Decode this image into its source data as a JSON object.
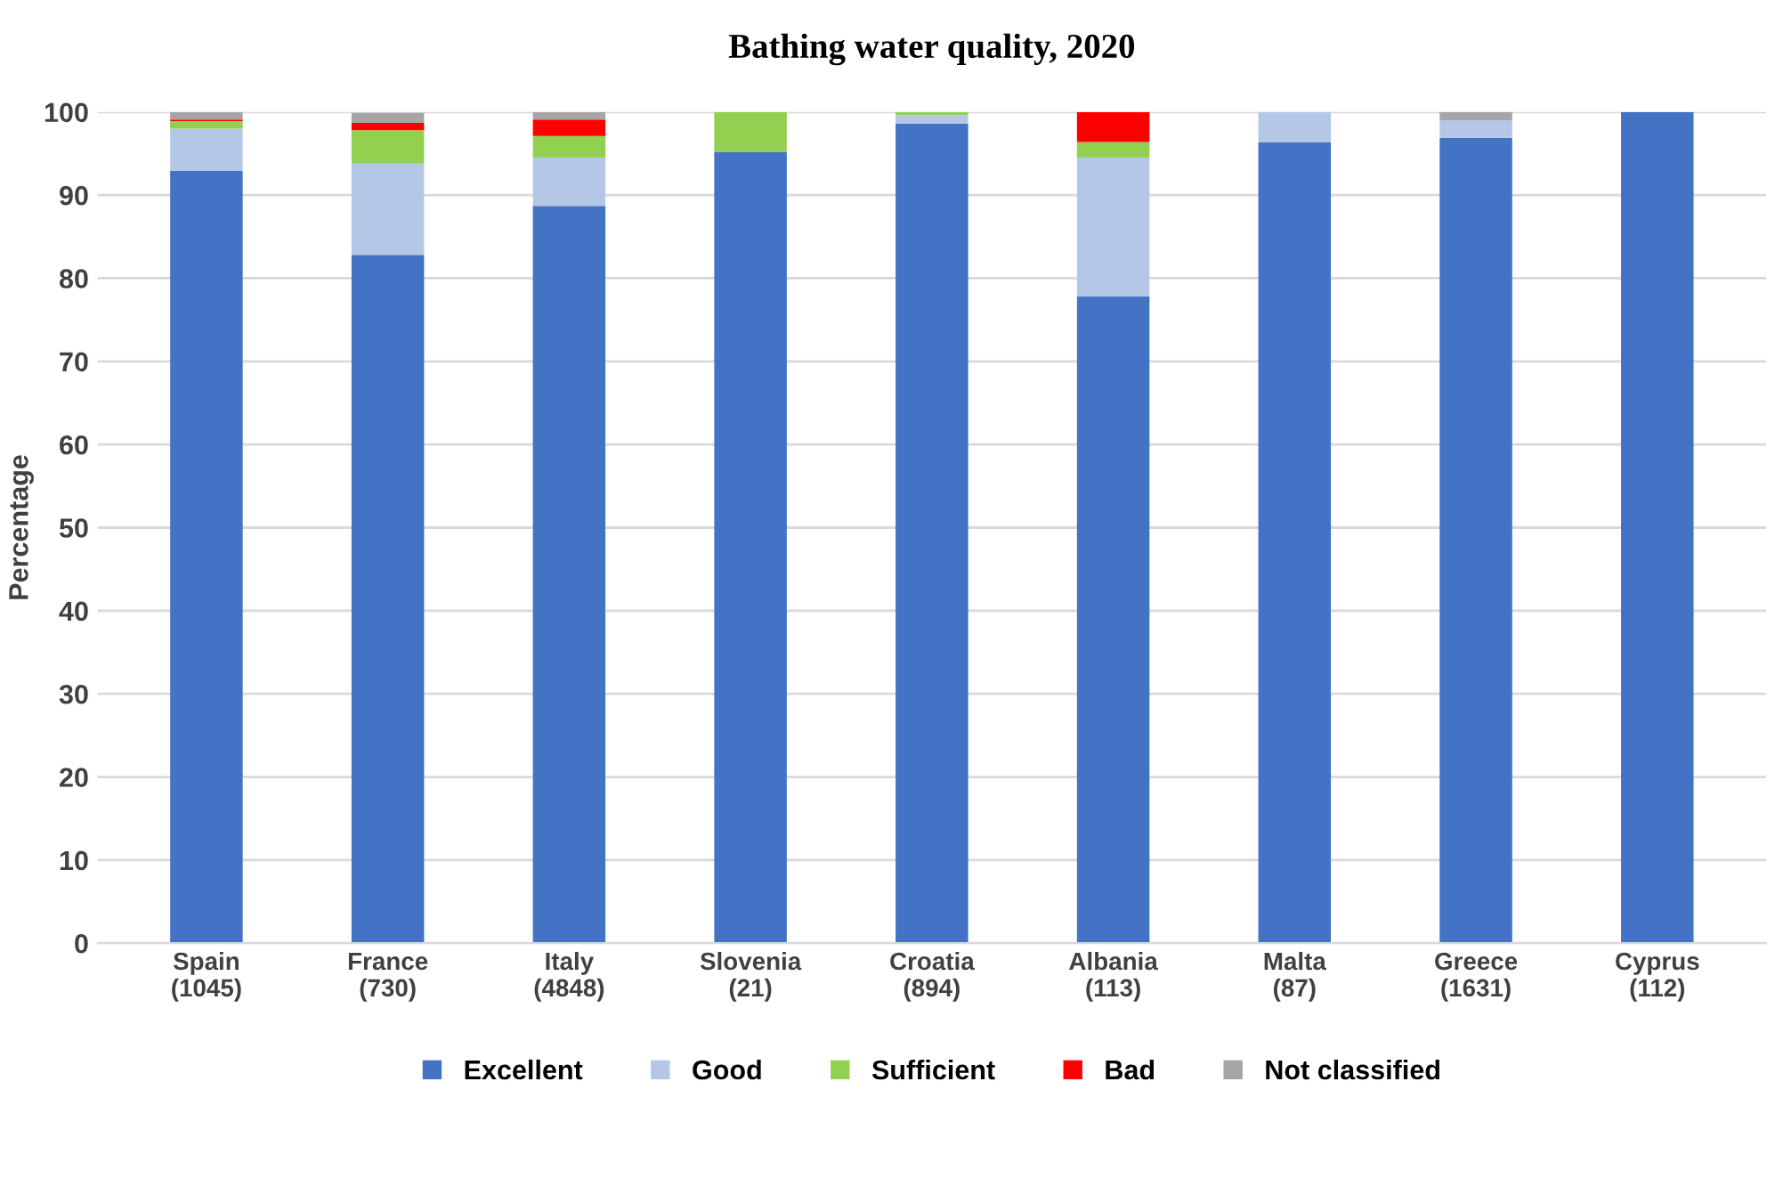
{
  "chart_data": {
    "type": "bar",
    "title": "Bathing water quality, 2020",
    "ylabel": "Percentage",
    "categories": [
      "Spain\n(1045)",
      "France\n(730)",
      "Italy\n(4848)",
      "Slovenia\n(21)",
      "Croatia\n(894)",
      "Albania\n(113)",
      "Malta\n(87)",
      "Greece\n(1631)",
      "Cyprus\n(112)"
    ],
    "stacked": true,
    "series": [
      {
        "name": "Excellent",
        "color": "#4472c4",
        "values": [
          92.9,
          82.8,
          88.7,
          95.2,
          98.6,
          77.8,
          96.4,
          96.9,
          100
        ]
      },
      {
        "name": "Good",
        "color": "#b4c7e7",
        "values": [
          5.1,
          11.0,
          5.8,
          0,
          1.0,
          16.7,
          3.6,
          2.1,
          0
        ]
      },
      {
        "name": "Sufficient",
        "color": "#92d050",
        "values": [
          0.9,
          4.0,
          2.6,
          4.8,
          0.4,
          1.9,
          0,
          0,
          0
        ]
      },
      {
        "name": "Bad",
        "color": "#ff0000",
        "values": [
          0.2,
          0.9,
          2.0,
          0,
          0,
          3.6,
          0,
          0,
          0
        ]
      },
      {
        "name": "Not classified",
        "color": "#a5a5a5",
        "values": [
          0.9,
          1.2,
          0.9,
          0,
          0,
          0,
          0,
          1.0,
          0
        ]
      }
    ],
    "ylim": [
      0,
      100
    ],
    "yticks": [
      0,
      10,
      20,
      30,
      40,
      50,
      60,
      70,
      80,
      90,
      100
    ],
    "grid": "y",
    "legend": "bottom"
  }
}
